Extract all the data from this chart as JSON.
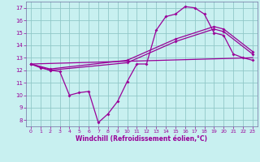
{
  "xlabel": "Windchill (Refroidissement éolien,°C)",
  "bg_color": "#c8f0f0",
  "grid_color": "#90c8c8",
  "line_color": "#990099",
  "spine_color": "#7070a0",
  "xlim": [
    -0.5,
    23.5
  ],
  "ylim": [
    7.5,
    17.5
  ],
  "xticks": [
    0,
    1,
    2,
    3,
    4,
    5,
    6,
    7,
    8,
    9,
    10,
    11,
    12,
    13,
    14,
    15,
    16,
    17,
    18,
    19,
    20,
    21,
    22,
    23
  ],
  "yticks": [
    8,
    9,
    10,
    11,
    12,
    13,
    14,
    15,
    16,
    17
  ],
  "curve1_x": [
    0,
    1,
    2,
    3,
    4,
    5,
    6,
    7,
    8,
    9,
    10,
    11,
    12,
    13,
    14,
    15,
    16,
    17,
    18,
    19,
    20,
    21,
    22,
    23
  ],
  "curve1_y": [
    12.5,
    12.2,
    12.0,
    11.9,
    10.0,
    10.2,
    10.3,
    7.8,
    8.5,
    9.5,
    11.1,
    12.5,
    12.5,
    15.2,
    16.3,
    16.5,
    17.1,
    17.0,
    16.5,
    15.0,
    14.8,
    13.3,
    13.0,
    12.8
  ],
  "curve2_x": [
    0,
    23
  ],
  "curve2_y": [
    12.5,
    13.0
  ],
  "curve3_x": [
    0,
    2,
    10,
    15,
    19,
    20,
    23
  ],
  "curve3_y": [
    12.5,
    12.0,
    12.6,
    14.3,
    15.3,
    15.1,
    13.3
  ],
  "curve4_x": [
    0,
    2,
    10,
    15,
    19,
    20,
    23
  ],
  "curve4_y": [
    12.5,
    12.1,
    12.8,
    14.5,
    15.5,
    15.3,
    13.5
  ]
}
